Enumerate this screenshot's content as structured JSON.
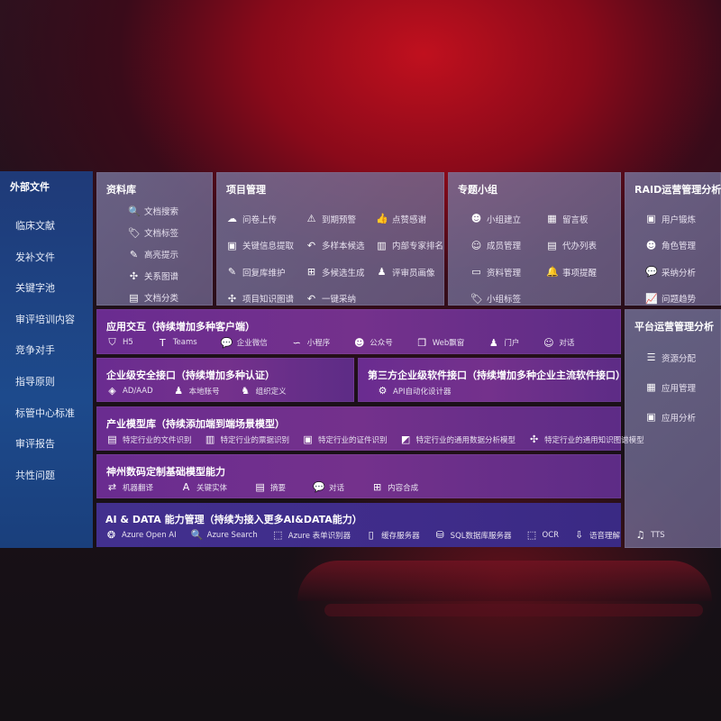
{
  "left": {
    "title": "外部文件",
    "items": [
      "临床文献",
      "发补文件",
      "关键字池",
      "审评培训内容",
      "竞争对手",
      "指导原则",
      "标管中心标准",
      "审评报告",
      "共性问题"
    ]
  },
  "ziliaoku": {
    "title": "资料库",
    "items": [
      {
        "icon": "doc-search-icon",
        "g": "🔍",
        "label": "文档搜索"
      },
      {
        "icon": "tag-icon",
        "g": "🏷",
        "label": "文档标签"
      },
      {
        "icon": "pen-icon",
        "g": "✎",
        "label": "高亮提示"
      },
      {
        "icon": "graph-icon",
        "g": "✣",
        "label": "关系图谱"
      },
      {
        "icon": "doc-category-icon",
        "g": "▤",
        "label": "文档分类"
      }
    ]
  },
  "xiangmu": {
    "title": "项目管理",
    "items": [
      {
        "icon": "cloud-upload-icon",
        "g": "☁",
        "label": "问卷上传"
      },
      {
        "icon": "alarm-icon",
        "g": "⚠",
        "label": "到期预警"
      },
      {
        "icon": "thumbs-up-icon",
        "g": "👍",
        "label": "点赞感谢"
      },
      {
        "icon": "window-icon",
        "g": "▣",
        "label": "关键信息提取"
      },
      {
        "icon": "reply-icon",
        "g": "↶",
        "label": "多样本候选"
      },
      {
        "icon": "ranking-icon",
        "g": "▥",
        "label": "内部专家排名"
      },
      {
        "icon": "edit-icon",
        "g": "✎",
        "label": "回复库维护"
      },
      {
        "icon": "puzzle-icon",
        "g": "⊞",
        "label": "多候选生成"
      },
      {
        "icon": "person-icon",
        "g": "♟",
        "label": "评审员画像"
      },
      {
        "icon": "graph-icon",
        "g": "✣",
        "label": "项目知识图谱"
      },
      {
        "icon": "reply-icon",
        "g": "↶",
        "label": "一键采纳"
      }
    ]
  },
  "zhuanti": {
    "title": "专题小组",
    "items": [
      {
        "icon": "group-icon",
        "g": "☻",
        "label": "小组建立"
      },
      {
        "icon": "bbs-icon",
        "g": "▦",
        "label": "留言板"
      },
      {
        "icon": "member-icon",
        "g": "☺",
        "label": "成员管理"
      },
      {
        "icon": "clipboard-icon",
        "g": "▤",
        "label": "代办列表"
      },
      {
        "icon": "folder-icon",
        "g": "▭",
        "label": "资料管理"
      },
      {
        "icon": "bell-icon",
        "g": "🔔",
        "label": "事项提醒"
      },
      {
        "icon": "tag-icon",
        "g": "🏷",
        "label": "小组标签"
      }
    ]
  },
  "raid": {
    "title": "RAID运营管理分析",
    "items": [
      {
        "icon": "id-card-icon",
        "g": "▣",
        "label": "用户锻炼"
      },
      {
        "icon": "users-icon",
        "g": "☻",
        "label": "角色管理"
      },
      {
        "icon": "qa-icon",
        "g": "💬",
        "label": "采纳分析"
      },
      {
        "icon": "trend-icon",
        "g": "📈",
        "label": "问题趋势"
      }
    ]
  },
  "platform": {
    "title": "平台运营管理分析",
    "items": [
      {
        "icon": "list-icon",
        "g": "☰",
        "label": "资源分配"
      },
      {
        "icon": "apps-icon",
        "g": "▦",
        "label": "应用管理"
      },
      {
        "icon": "chart-icon",
        "g": "▣",
        "label": "应用分析"
      }
    ]
  },
  "app": {
    "title": "应用交互（持续增加多种客户端）",
    "items": [
      {
        "icon": "html5-icon",
        "g": "⛉",
        "label": "H5"
      },
      {
        "icon": "teams-icon",
        "g": "T",
        "label": "Teams"
      },
      {
        "icon": "wechat-icon",
        "g": "💬",
        "label": "企业微信"
      },
      {
        "icon": "miniprogram-icon",
        "g": "∽",
        "label": "小程序"
      },
      {
        "icon": "official-account-icon",
        "g": "☻",
        "label": "公众号"
      },
      {
        "icon": "web-window-icon",
        "g": "❐",
        "label": "Web飘窗"
      },
      {
        "icon": "portal-icon",
        "g": "♟",
        "label": "门户"
      },
      {
        "icon": "chat-icon",
        "g": "☺",
        "label": "对话"
      }
    ]
  },
  "security": {
    "title": "企业级安全接口（持续增加多种认证）",
    "items": [
      {
        "icon": "ad-icon",
        "g": "◈",
        "label": "AD/AAD"
      },
      {
        "icon": "local-account-icon",
        "g": "♟",
        "label": "本地账号"
      },
      {
        "icon": "org-icon",
        "g": "♞",
        "label": "组织定义"
      }
    ]
  },
  "thirdparty": {
    "title": "第三方企业级软件接口（持续增加多种企业主流软件接口）",
    "items": [
      {
        "icon": "gear-icon",
        "g": "⚙",
        "label": "API自动化设计器"
      }
    ]
  },
  "industry": {
    "title": "产业模型库（持续添加端到端场景模型）",
    "items": [
      {
        "icon": "file-icon",
        "g": "▤",
        "label": "特定行业的文件识别"
      },
      {
        "icon": "invoice-icon",
        "g": "▥",
        "label": "特定行业的票据识别"
      },
      {
        "icon": "id-card-icon",
        "g": "▣",
        "label": "特定行业的证件识别"
      },
      {
        "icon": "image-icon",
        "g": "◩",
        "label": "特定行业的通用数据分析模型"
      },
      {
        "icon": "graph-icon",
        "g": "✣",
        "label": "特定行业的通用知识图谱模型"
      }
    ]
  },
  "shenzhou": {
    "title": "神州数码定制基础模型能力",
    "items": [
      {
        "icon": "translate-icon",
        "g": "⇄",
        "label": "机器翻译"
      },
      {
        "icon": "entity-icon",
        "g": "A",
        "label": "关键实体"
      },
      {
        "icon": "summary-icon",
        "g": "▤",
        "label": "摘要"
      },
      {
        "icon": "chat-icon",
        "g": "💬",
        "label": "对话"
      },
      {
        "icon": "puzzle-icon",
        "g": "⊞",
        "label": "内容合成"
      }
    ]
  },
  "aidata": {
    "title": "AI & DATA 能力管理（持续为接入更多AI&DATA能力）",
    "items": [
      {
        "icon": "openai-icon",
        "g": "❂",
        "label": "Azure Open AI"
      },
      {
        "icon": "search-icon",
        "g": "🔍",
        "label": "Azure Search"
      },
      {
        "icon": "form-recognizer-icon",
        "g": "⬚",
        "label": "Azure 表单识别器"
      },
      {
        "icon": "cache-server-icon",
        "g": "▯",
        "label": "缓存服务器"
      },
      {
        "icon": "database-icon",
        "g": "⛁",
        "label": "SQL数据库服务器"
      },
      {
        "icon": "ocr-icon",
        "g": "⬚",
        "label": "OCR"
      },
      {
        "icon": "speech-icon",
        "g": "⇩",
        "label": "语音理解"
      },
      {
        "icon": "tts-icon",
        "g": "♫",
        "label": "TTS"
      }
    ]
  }
}
